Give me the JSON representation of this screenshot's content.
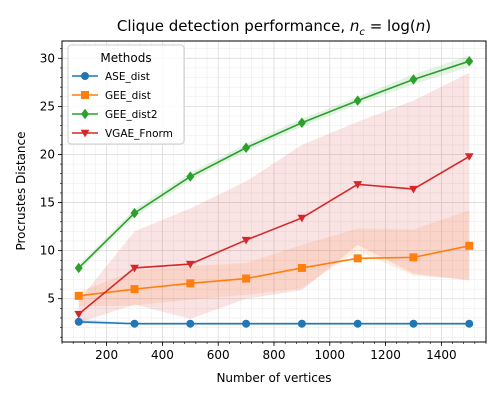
{
  "chart_data": {
    "type": "line",
    "title_main": "Clique detection performance, ",
    "title_math": "n",
    "title_sub": "c",
    "title_rest": " = log(",
    "title_math2": "n",
    "title_end": ")",
    "xlabel": "Number of vertices",
    "ylabel": "Procrustes Distance",
    "xlim": [
      40,
      1560
    ],
    "ylim": [
      0.5,
      31.8
    ],
    "x_ticks": [
      200,
      400,
      600,
      800,
      1000,
      1200,
      1400
    ],
    "y_ticks": [
      5,
      10,
      15,
      20,
      25,
      30
    ],
    "x_minor_step": 40,
    "y_minor_step": 1,
    "grid": true,
    "legend_title": "Methods",
    "legend_position": "top-left",
    "x": [
      100,
      300,
      500,
      700,
      900,
      1100,
      1300,
      1500
    ],
    "series": [
      {
        "name": "ASE_dist",
        "color": "#1f77b4",
        "marker": "circle",
        "values": [
          2.6,
          2.4,
          2.4,
          2.4,
          2.4,
          2.4,
          2.4,
          2.4
        ],
        "band_lower": [
          2.4,
          2.3,
          2.3,
          2.3,
          2.3,
          2.3,
          2.3,
          2.3
        ],
        "band_upper": [
          2.9,
          2.5,
          2.5,
          2.5,
          2.5,
          2.5,
          2.5,
          2.5
        ]
      },
      {
        "name": "GEE_dist",
        "color": "#ff7f0e",
        "marker": "square",
        "values": [
          5.3,
          6.0,
          6.6,
          7.1,
          8.2,
          9.2,
          9.3,
          10.5
        ],
        "band_lower": [
          4.2,
          4.3,
          4.9,
          5.4,
          6.1,
          10.0,
          7.4,
          7.0
        ],
        "band_upper": [
          5.7,
          7.9,
          8.4,
          8.7,
          10.6,
          12.3,
          12.2,
          14.2
        ]
      },
      {
        "name": "GEE_dist2",
        "color": "#2ca02c",
        "marker": "diamond",
        "values": [
          8.2,
          13.9,
          17.7,
          20.7,
          23.3,
          25.6,
          27.8,
          29.7
        ],
        "band_lower": [
          7.9,
          13.5,
          17.3,
          20.3,
          22.9,
          25.2,
          27.3,
          29.1
        ],
        "band_upper": [
          8.5,
          14.3,
          18.1,
          21.1,
          23.7,
          26.0,
          28.3,
          30.3
        ]
      },
      {
        "name": "VGAE_Fnorm",
        "color": "#d62728",
        "marker": "triangle-down",
        "values": [
          3.4,
          8.2,
          8.6,
          11.1,
          13.4,
          16.9,
          16.4,
          19.8
        ],
        "band_lower": [
          2.5,
          4.4,
          2.9,
          5.0,
          5.9,
          10.6,
          7.6,
          6.9
        ],
        "band_upper": [
          4.8,
          12.0,
          14.4,
          17.2,
          21.0,
          23.4,
          25.6,
          28.5
        ]
      }
    ]
  }
}
